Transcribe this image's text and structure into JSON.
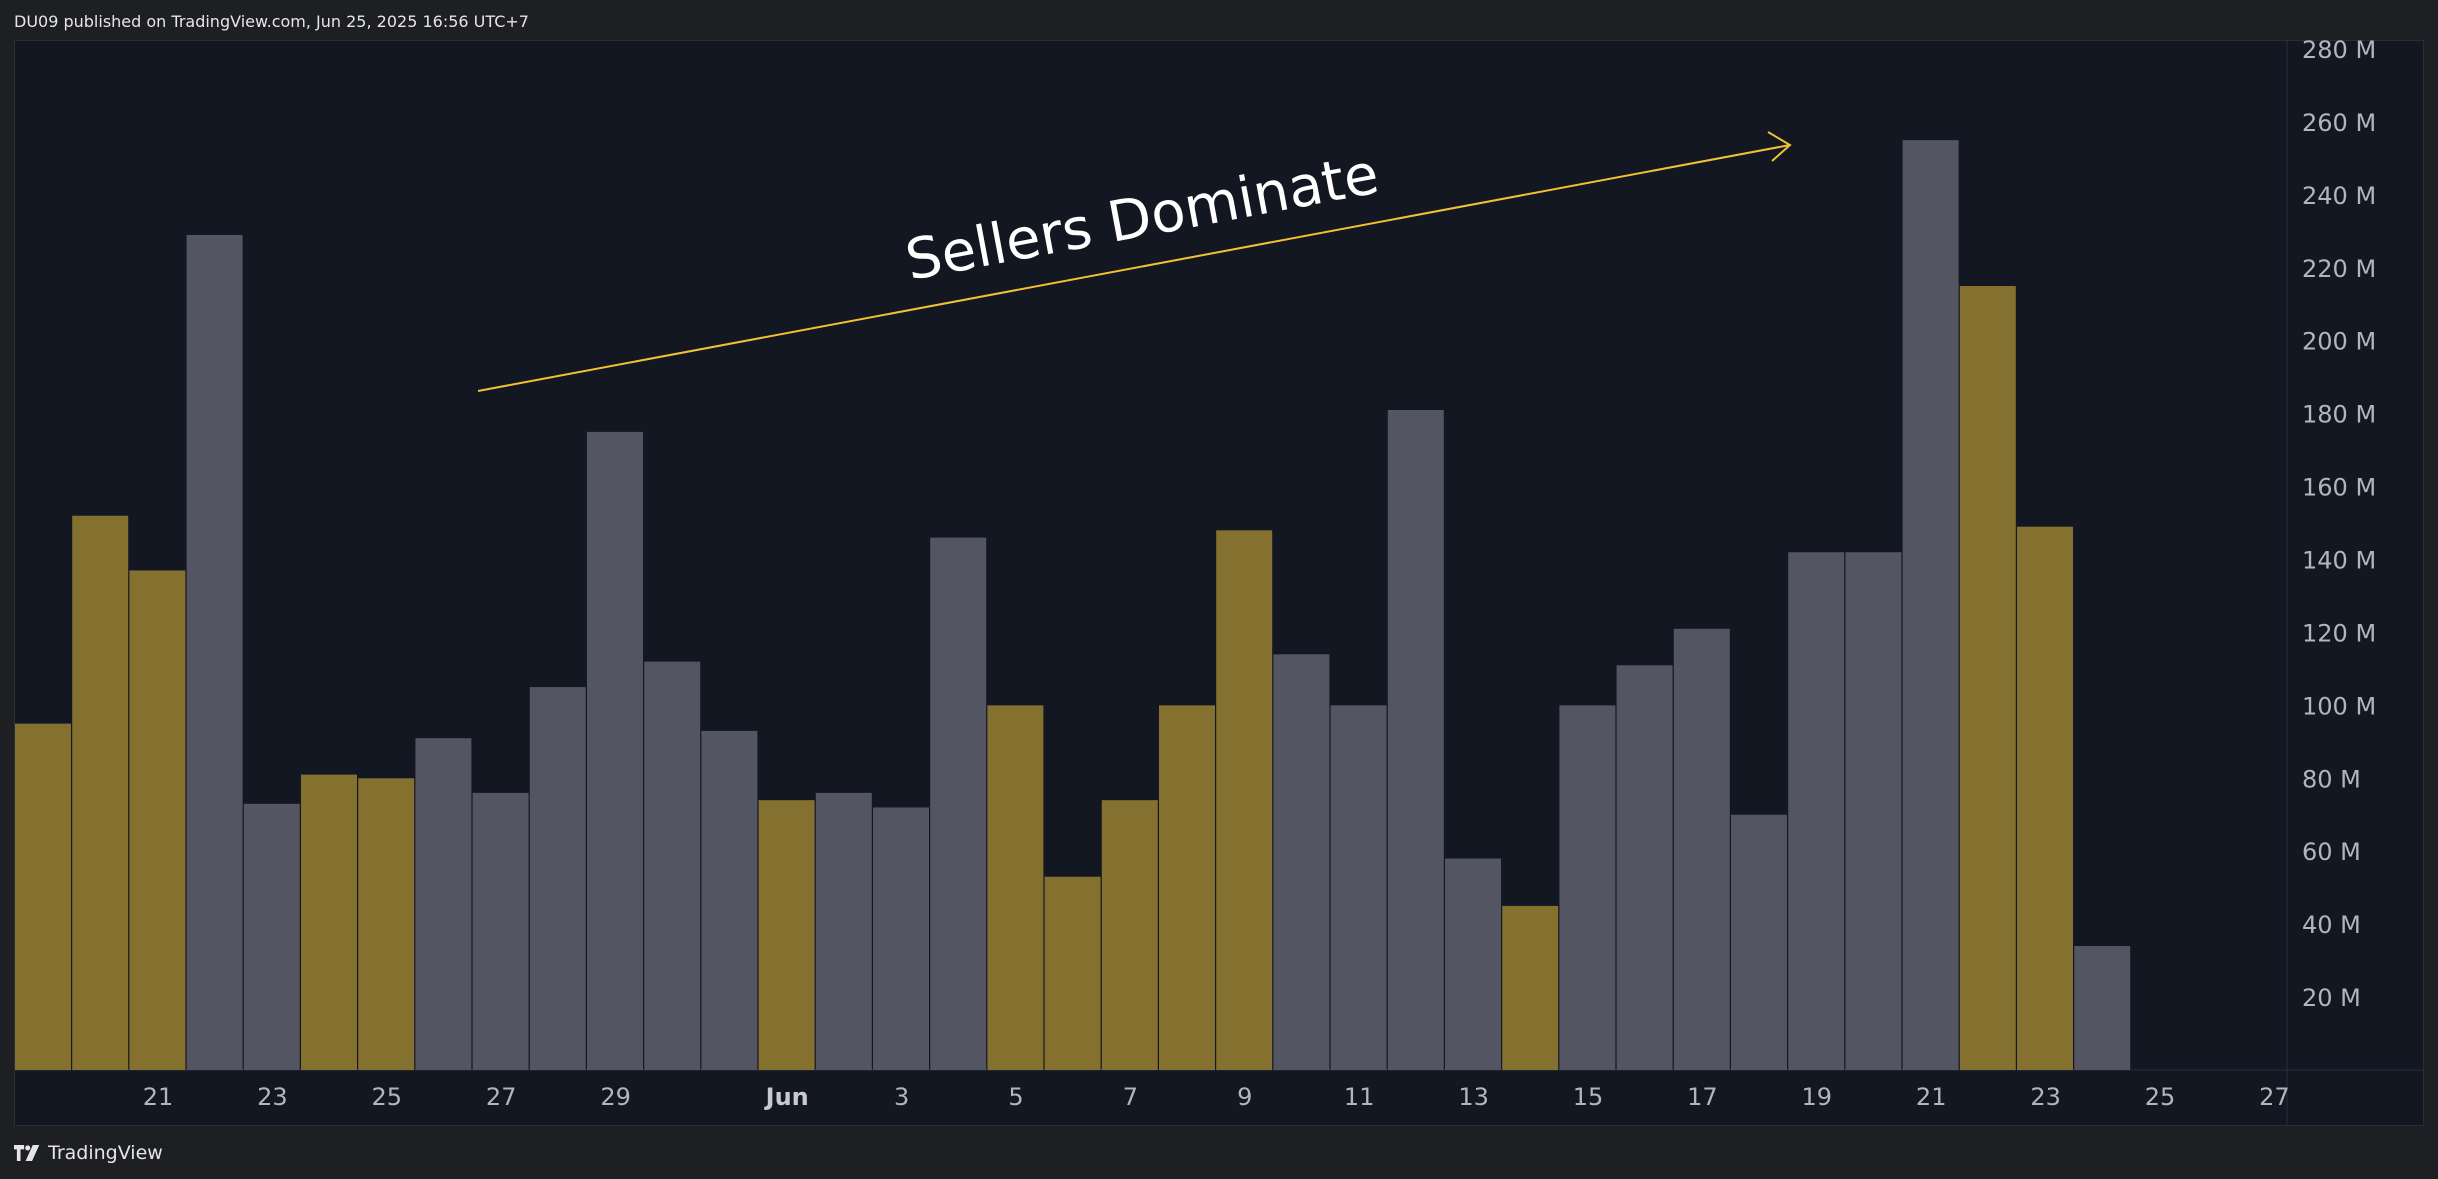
{
  "header": {
    "publish_line": "DU09 published on TradingView.com, Jun 25, 2025 16:56 UTC+7"
  },
  "footer": {
    "brand": "TradingView",
    "logo_icon": "tradingview-logo-icon"
  },
  "colors": {
    "up_bar": "#847130",
    "down_bar": "#535562",
    "background": "#131722",
    "annotation_arrow": "#f0c233"
  },
  "annotation": {
    "text": "Sellers Dominate"
  },
  "chart_data": {
    "type": "bar",
    "title": "",
    "xlabel": "",
    "ylabel": "",
    "ylim": [
      0,
      280000000
    ],
    "y_ticks": [
      "20 M",
      "40 M",
      "60 M",
      "80 M",
      "100 M",
      "120 M",
      "140 M",
      "160 M",
      "180 M",
      "200 M",
      "220 M",
      "240 M",
      "260 M",
      "280 M"
    ],
    "x_ticks": [
      {
        "label": "21",
        "date": "2025-05-21"
      },
      {
        "label": "23",
        "date": "2025-05-23"
      },
      {
        "label": "25",
        "date": "2025-05-25"
      },
      {
        "label": "27",
        "date": "2025-05-27"
      },
      {
        "label": "29",
        "date": "2025-05-29"
      },
      {
        "label": "Jun",
        "date": "2025-06-01",
        "bold": true
      },
      {
        "label": "3",
        "date": "2025-06-03"
      },
      {
        "label": "5",
        "date": "2025-06-05"
      },
      {
        "label": "7",
        "date": "2025-06-07"
      },
      {
        "label": "9",
        "date": "2025-06-09"
      },
      {
        "label": "11",
        "date": "2025-06-11"
      },
      {
        "label": "13",
        "date": "2025-06-13"
      },
      {
        "label": "15",
        "date": "2025-06-15"
      },
      {
        "label": "17",
        "date": "2025-06-17"
      },
      {
        "label": "19",
        "date": "2025-06-19"
      },
      {
        "label": "21",
        "date": "2025-06-21"
      },
      {
        "label": "23",
        "date": "2025-06-23"
      },
      {
        "label": "25",
        "date": "2025-06-25"
      },
      {
        "label": "27",
        "date": "2025-06-27"
      }
    ],
    "grid": false,
    "series": [
      {
        "bars": [
          {
            "date": "2025-05-19",
            "value": 95000000,
            "dir": "up"
          },
          {
            "date": "2025-05-20",
            "value": 152000000,
            "dir": "up"
          },
          {
            "date": "2025-05-21",
            "value": 137000000,
            "dir": "up"
          },
          {
            "date": "2025-05-22",
            "value": 229000000,
            "dir": "down"
          },
          {
            "date": "2025-05-23",
            "value": 73000000,
            "dir": "down"
          },
          {
            "date": "2025-05-24",
            "value": 81000000,
            "dir": "up"
          },
          {
            "date": "2025-05-25",
            "value": 80000000,
            "dir": "up"
          },
          {
            "date": "2025-05-26",
            "value": 91000000,
            "dir": "down"
          },
          {
            "date": "2025-05-27",
            "value": 76000000,
            "dir": "down"
          },
          {
            "date": "2025-05-28",
            "value": 105000000,
            "dir": "down"
          },
          {
            "date": "2025-05-29",
            "value": 175000000,
            "dir": "down"
          },
          {
            "date": "2025-05-30",
            "value": 112000000,
            "dir": "down"
          },
          {
            "date": "2025-05-31",
            "value": 93000000,
            "dir": "down"
          },
          {
            "date": "2025-06-01",
            "value": 74000000,
            "dir": "up"
          },
          {
            "date": "2025-06-02",
            "value": 76000000,
            "dir": "down"
          },
          {
            "date": "2025-06-03",
            "value": 72000000,
            "dir": "down"
          },
          {
            "date": "2025-06-04",
            "value": 146000000,
            "dir": "down"
          },
          {
            "date": "2025-06-05",
            "value": 100000000,
            "dir": "up"
          },
          {
            "date": "2025-06-06",
            "value": 53000000,
            "dir": "up"
          },
          {
            "date": "2025-06-07",
            "value": 74000000,
            "dir": "up"
          },
          {
            "date": "2025-06-08",
            "value": 100000000,
            "dir": "up"
          },
          {
            "date": "2025-06-09",
            "value": 148000000,
            "dir": "up"
          },
          {
            "date": "2025-06-10",
            "value": 114000000,
            "dir": "down"
          },
          {
            "date": "2025-06-11",
            "value": 100000000,
            "dir": "down"
          },
          {
            "date": "2025-06-12",
            "value": 181000000,
            "dir": "down"
          },
          {
            "date": "2025-06-13",
            "value": 58000000,
            "dir": "down"
          },
          {
            "date": "2025-06-14",
            "value": 45000000,
            "dir": "up"
          },
          {
            "date": "2025-06-15",
            "value": 100000000,
            "dir": "down"
          },
          {
            "date": "2025-06-16",
            "value": 111000000,
            "dir": "down"
          },
          {
            "date": "2025-06-17",
            "value": 121000000,
            "dir": "down"
          },
          {
            "date": "2025-06-18",
            "value": 70000000,
            "dir": "down"
          },
          {
            "date": "2025-06-19",
            "value": 142000000,
            "dir": "down"
          },
          {
            "date": "2025-06-20",
            "value": 142000000,
            "dir": "down"
          },
          {
            "date": "2025-06-21",
            "value": 255000000,
            "dir": "down"
          },
          {
            "date": "2025-06-22",
            "value": 215000000,
            "dir": "up"
          },
          {
            "date": "2025-06-23",
            "value": 149000000,
            "dir": "up"
          },
          {
            "date": "2025-06-24",
            "value": 34000000,
            "dir": "down"
          }
        ]
      }
    ]
  }
}
